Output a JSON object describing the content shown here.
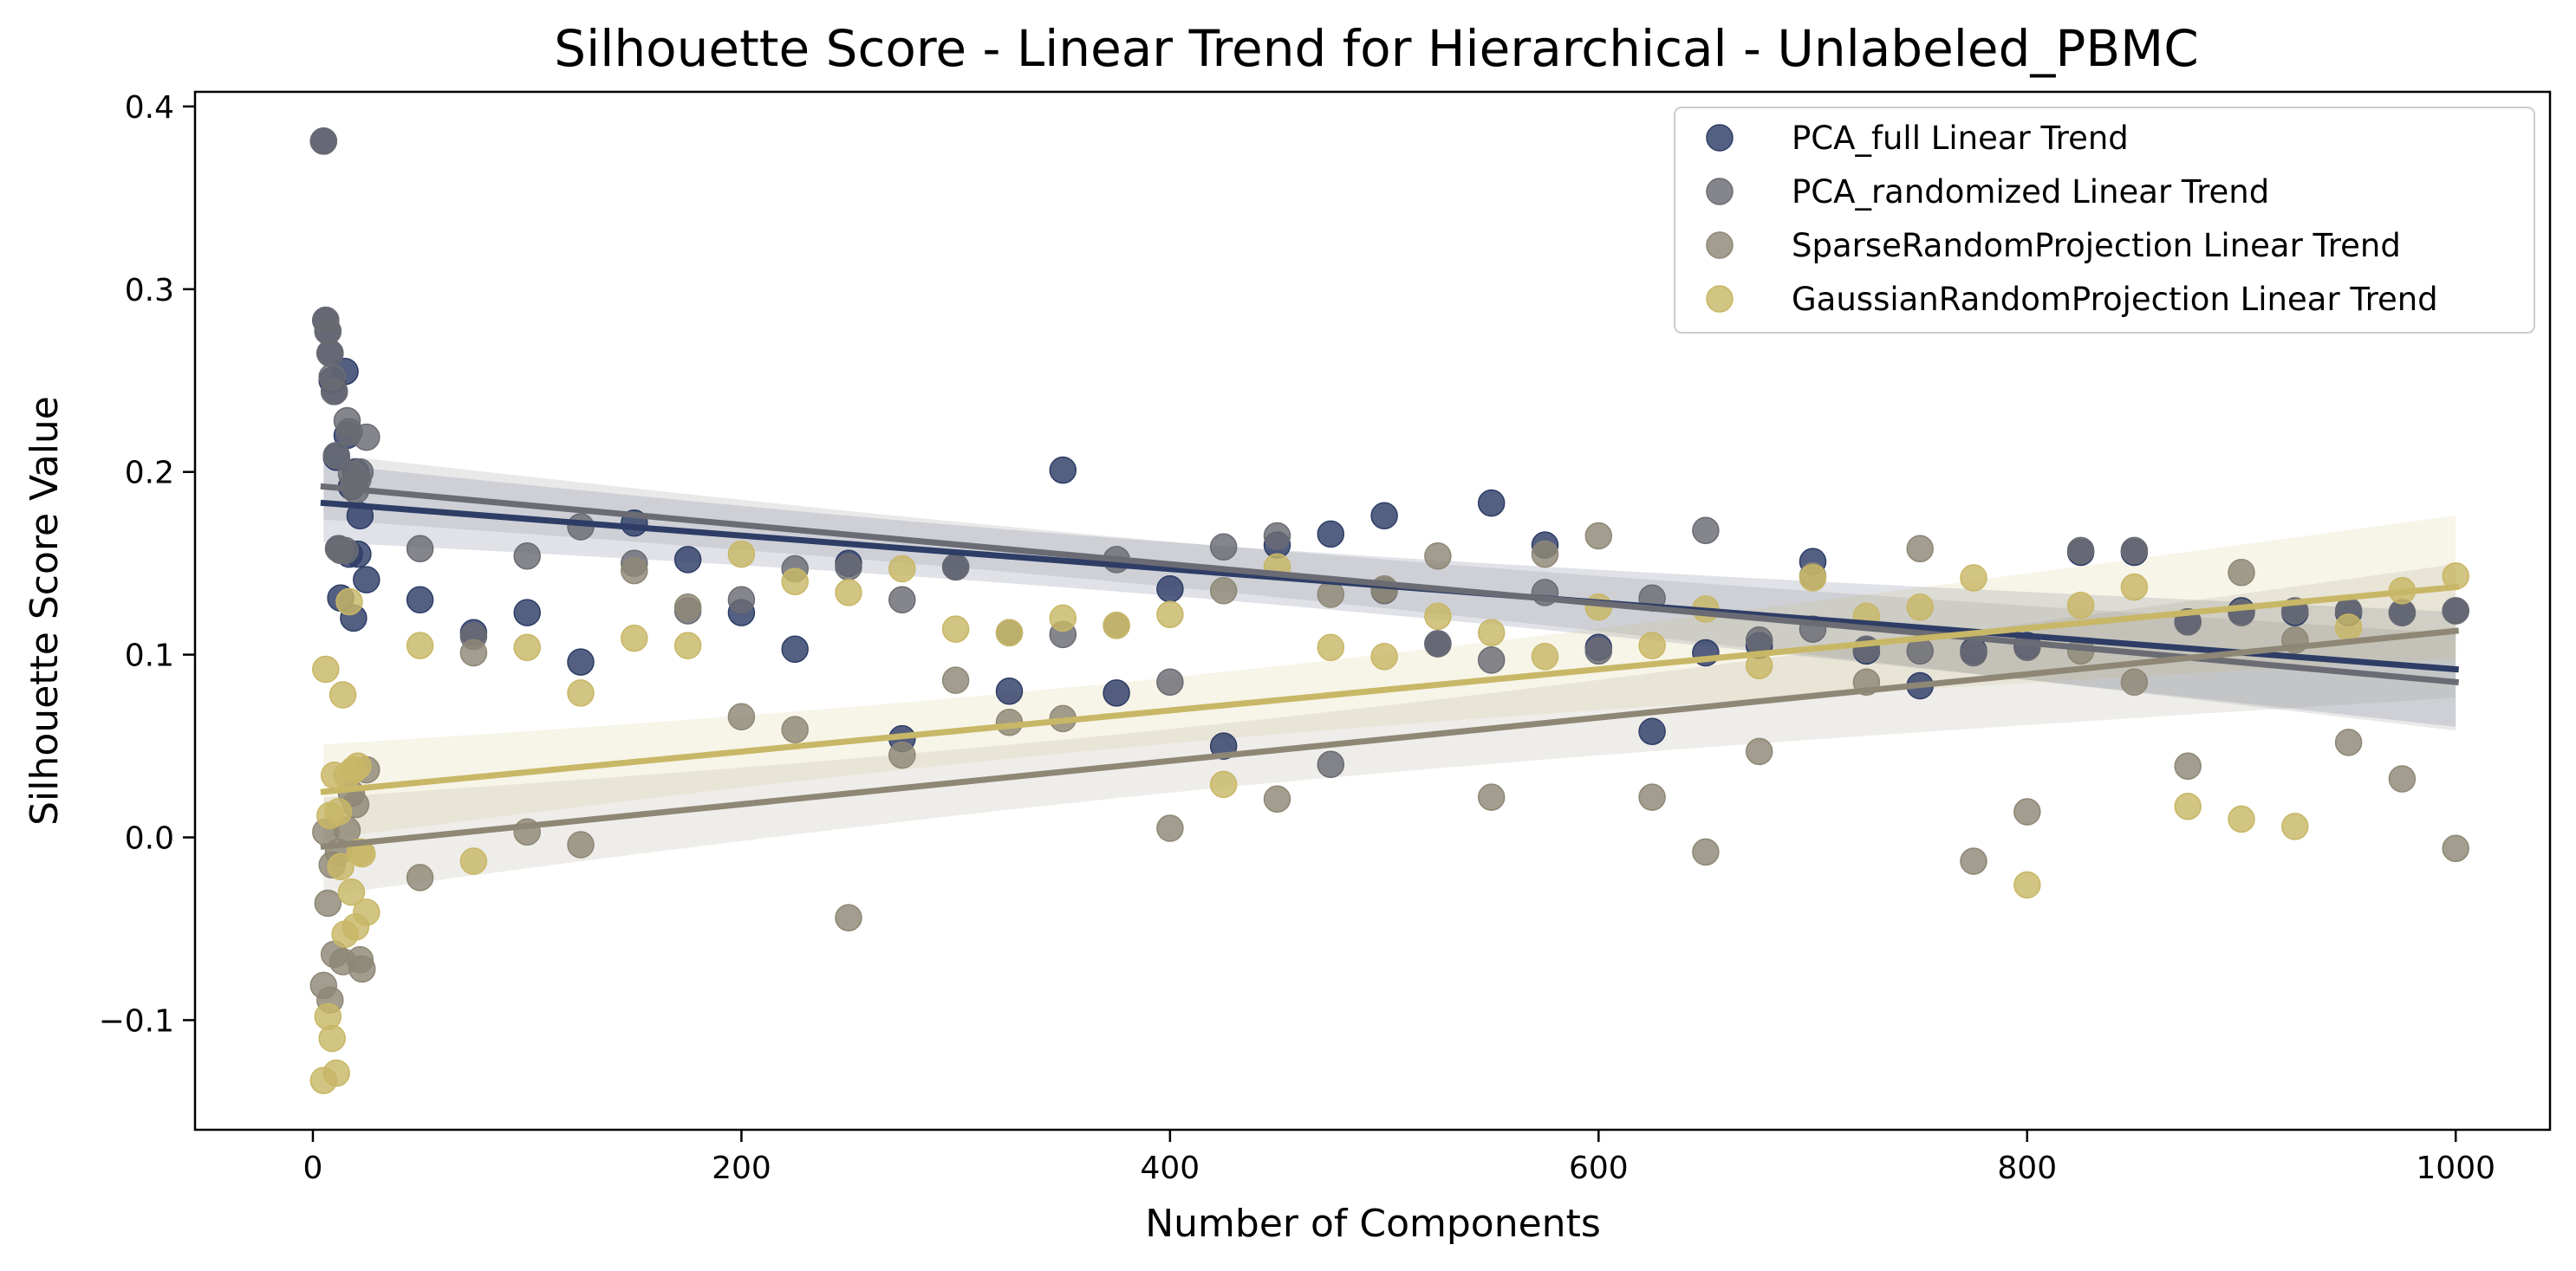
{
  "chart_data": {
    "type": "scatter",
    "title": "Silhouette Score - Linear Trend for Hierarchical - Unlabeled_PBMC",
    "xlabel": "Number of Components",
    "ylabel": "Silhouette Score Value",
    "xlim": [
      -55,
      1044
    ],
    "ylim": [
      -0.16,
      0.408
    ],
    "xticks": [
      0,
      200,
      400,
      600,
      800,
      1000
    ],
    "xtick_labels": [
      "0",
      "200",
      "400",
      "600",
      "800",
      "1000"
    ],
    "yticks": [
      -0.1,
      0.0,
      0.1,
      0.2,
      0.3,
      0.4
    ],
    "ytick_labels": [
      "−0.1",
      "0.0",
      "0.1",
      "0.2",
      "0.3",
      "0.4"
    ],
    "grid": false,
    "legend_position": "top-right",
    "series": [
      {
        "name": "PCA_full Linear Trend",
        "color": "#2e3d66",
        "points": [
          [
            5,
            0.381
          ],
          [
            6,
            0.283
          ],
          [
            7,
            0.277
          ],
          [
            8,
            0.265
          ],
          [
            9,
            0.25
          ],
          [
            10,
            0.244
          ],
          [
            11,
            0.208
          ],
          [
            12,
            0.158
          ],
          [
            13,
            0.131
          ],
          [
            15,
            0.255
          ],
          [
            16,
            0.22
          ],
          [
            17,
            0.155
          ],
          [
            18,
            0.192
          ],
          [
            19,
            0.12
          ],
          [
            20,
            0.2
          ],
          [
            21,
            0.155
          ],
          [
            22,
            0.176
          ],
          [
            25,
            0.141
          ],
          [
            50,
            0.13
          ],
          [
            75,
            0.112
          ],
          [
            100,
            0.123
          ],
          [
            125,
            0.096
          ],
          [
            150,
            0.172
          ],
          [
            175,
            0.152
          ],
          [
            200,
            0.123
          ],
          [
            225,
            0.103
          ],
          [
            250,
            0.15
          ],
          [
            275,
            0.054
          ],
          [
            300,
            0.148
          ],
          [
            325,
            0.08
          ],
          [
            350,
            0.201
          ],
          [
            375,
            0.079
          ],
          [
            400,
            0.136
          ],
          [
            425,
            0.05
          ],
          [
            450,
            0.16
          ],
          [
            475,
            0.166
          ],
          [
            500,
            0.176
          ],
          [
            525,
            0.106
          ],
          [
            550,
            0.183
          ],
          [
            575,
            0.16
          ],
          [
            600,
            0.104
          ],
          [
            625,
            0.058
          ],
          [
            650,
            0.101
          ],
          [
            675,
            0.105
          ],
          [
            700,
            0.151
          ],
          [
            725,
            0.102
          ],
          [
            750,
            0.083
          ],
          [
            775,
            0.102
          ],
          [
            800,
            0.105
          ],
          [
            825,
            0.156
          ],
          [
            850,
            0.156
          ],
          [
            875,
            0.118
          ],
          [
            900,
            0.124
          ],
          [
            925,
            0.123
          ],
          [
            950,
            0.123
          ],
          [
            975,
            0.123
          ],
          [
            1000,
            0.124
          ]
        ],
        "trend": {
          "x": [
            5,
            1000
          ],
          "y": [
            0.183,
            0.092
          ]
        }
      },
      {
        "name": "PCA_randomized Linear Trend",
        "color": "#6a6b73",
        "points": [
          [
            5,
            0.381
          ],
          [
            6,
            0.283
          ],
          [
            7,
            0.277
          ],
          [
            8,
            0.265
          ],
          [
            9,
            0.252
          ],
          [
            10,
            0.244
          ],
          [
            11,
            0.209
          ],
          [
            12,
            0.158
          ],
          [
            13,
            0.157
          ],
          [
            15,
            0.157
          ],
          [
            16,
            0.228
          ],
          [
            17,
            0.222
          ],
          [
            18,
            0.199
          ],
          [
            19,
            0.193
          ],
          [
            20,
            0.19
          ],
          [
            21,
            0.196
          ],
          [
            22,
            0.2
          ],
          [
            25,
            0.219
          ],
          [
            50,
            0.158
          ],
          [
            75,
            0.11
          ],
          [
            100,
            0.154
          ],
          [
            125,
            0.17
          ],
          [
            150,
            0.15
          ],
          [
            175,
            0.124
          ],
          [
            200,
            0.13
          ],
          [
            225,
            0.147
          ],
          [
            250,
            0.148
          ],
          [
            275,
            0.13
          ],
          [
            300,
            0.148
          ],
          [
            325,
            0.112
          ],
          [
            350,
            0.111
          ],
          [
            375,
            0.152
          ],
          [
            400,
            0.085
          ],
          [
            425,
            0.159
          ],
          [
            450,
            0.165
          ],
          [
            475,
            0.04
          ],
          [
            500,
            0.135
          ],
          [
            525,
            0.106
          ],
          [
            550,
            0.097
          ],
          [
            575,
            0.134
          ],
          [
            600,
            0.102
          ],
          [
            625,
            0.131
          ],
          [
            650,
            0.168
          ],
          [
            675,
            0.108
          ],
          [
            700,
            0.114
          ],
          [
            725,
            0.103
          ],
          [
            750,
            0.102
          ],
          [
            775,
            0.101
          ],
          [
            800,
            0.104
          ],
          [
            825,
            0.157
          ],
          [
            850,
            0.157
          ],
          [
            875,
            0.118
          ],
          [
            900,
            0.123
          ],
          [
            925,
            0.124
          ],
          [
            950,
            0.124
          ],
          [
            975,
            0.123
          ],
          [
            1000,
            0.124
          ]
        ],
        "trend": {
          "x": [
            5,
            1000
          ],
          "y": [
            0.192,
            0.085
          ]
        }
      },
      {
        "name": "SparseRandomProjection Linear Trend",
        "color": "#8e8775",
        "points": [
          [
            5,
            -0.081
          ],
          [
            6,
            0.003
          ],
          [
            7,
            -0.036
          ],
          [
            8,
            -0.089
          ],
          [
            9,
            -0.015
          ],
          [
            10,
            -0.064
          ],
          [
            12,
            -0.008
          ],
          [
            14,
            -0.068
          ],
          [
            16,
            0.004
          ],
          [
            18,
            0.024
          ],
          [
            20,
            0.018
          ],
          [
            22,
            -0.067
          ],
          [
            23,
            -0.072
          ],
          [
            25,
            0.037
          ],
          [
            50,
            -0.022
          ],
          [
            75,
            0.101
          ],
          [
            100,
            0.003
          ],
          [
            125,
            -0.004
          ],
          [
            150,
            0.146
          ],
          [
            175,
            0.126
          ],
          [
            200,
            0.066
          ],
          [
            225,
            0.059
          ],
          [
            250,
            -0.044
          ],
          [
            275,
            0.045
          ],
          [
            300,
            0.086
          ],
          [
            325,
            0.063
          ],
          [
            350,
            0.065
          ],
          [
            375,
            0.116
          ],
          [
            400,
            0.005
          ],
          [
            425,
            0.135
          ],
          [
            450,
            0.021
          ],
          [
            475,
            0.133
          ],
          [
            500,
            0.136
          ],
          [
            525,
            0.154
          ],
          [
            550,
            0.022
          ],
          [
            575,
            0.155
          ],
          [
            600,
            0.165
          ],
          [
            625,
            0.022
          ],
          [
            650,
            -0.008
          ],
          [
            675,
            0.047
          ],
          [
            700,
            0.143
          ],
          [
            725,
            0.085
          ],
          [
            750,
            0.158
          ],
          [
            775,
            -0.013
          ],
          [
            800,
            0.014
          ],
          [
            825,
            0.102
          ],
          [
            850,
            0.085
          ],
          [
            875,
            0.039
          ],
          [
            900,
            0.145
          ],
          [
            925,
            0.108
          ],
          [
            950,
            0.052
          ],
          [
            975,
            0.032
          ],
          [
            1000,
            -0.006
          ]
        ],
        "trend": {
          "x": [
            5,
            1000
          ],
          "y": [
            -0.005,
            0.113
          ]
        }
      },
      {
        "name": "GaussianRandomProjection Linear Trend",
        "color": "#c8b766",
        "points": [
          [
            5,
            -0.133
          ],
          [
            6,
            0.092
          ],
          [
            7,
            -0.098
          ],
          [
            8,
            0.012
          ],
          [
            9,
            -0.11
          ],
          [
            10,
            0.034
          ],
          [
            11,
            -0.129
          ],
          [
            12,
            0.014
          ],
          [
            13,
            -0.016
          ],
          [
            14,
            0.078
          ],
          [
            15,
            -0.053
          ],
          [
            16,
            0.034
          ],
          [
            17,
            0.129
          ],
          [
            18,
            -0.03
          ],
          [
            19,
            0.037
          ],
          [
            20,
            -0.049
          ],
          [
            21,
            0.039
          ],
          [
            22,
            -0.008
          ],
          [
            23,
            -0.009
          ],
          [
            25,
            -0.041
          ],
          [
            50,
            0.105
          ],
          [
            75,
            -0.013
          ],
          [
            100,
            0.104
          ],
          [
            125,
            0.079
          ],
          [
            150,
            0.109
          ],
          [
            175,
            0.105
          ],
          [
            200,
            0.155
          ],
          [
            225,
            0.14
          ],
          [
            250,
            0.134
          ],
          [
            275,
            0.147
          ],
          [
            300,
            0.114
          ],
          [
            325,
            0.112
          ],
          [
            350,
            0.12
          ],
          [
            375,
            0.116
          ],
          [
            400,
            0.122
          ],
          [
            425,
            0.029
          ],
          [
            450,
            0.148
          ],
          [
            475,
            0.104
          ],
          [
            500,
            0.099
          ],
          [
            525,
            0.121
          ],
          [
            550,
            0.112
          ],
          [
            575,
            0.099
          ],
          [
            600,
            0.126
          ],
          [
            625,
            0.105
          ],
          [
            650,
            0.125
          ],
          [
            675,
            0.094
          ],
          [
            700,
            0.142
          ],
          [
            725,
            0.121
          ],
          [
            750,
            0.126
          ],
          [
            775,
            0.142
          ],
          [
            800,
            -0.026
          ],
          [
            825,
            0.127
          ],
          [
            850,
            0.137
          ],
          [
            875,
            0.017
          ],
          [
            900,
            0.01
          ],
          [
            925,
            0.006
          ],
          [
            950,
            0.115
          ],
          [
            975,
            0.135
          ],
          [
            1000,
            0.143
          ]
        ],
        "trend": {
          "x": [
            5,
            1000
          ],
          "y": [
            0.025,
            0.137
          ]
        }
      }
    ]
  }
}
